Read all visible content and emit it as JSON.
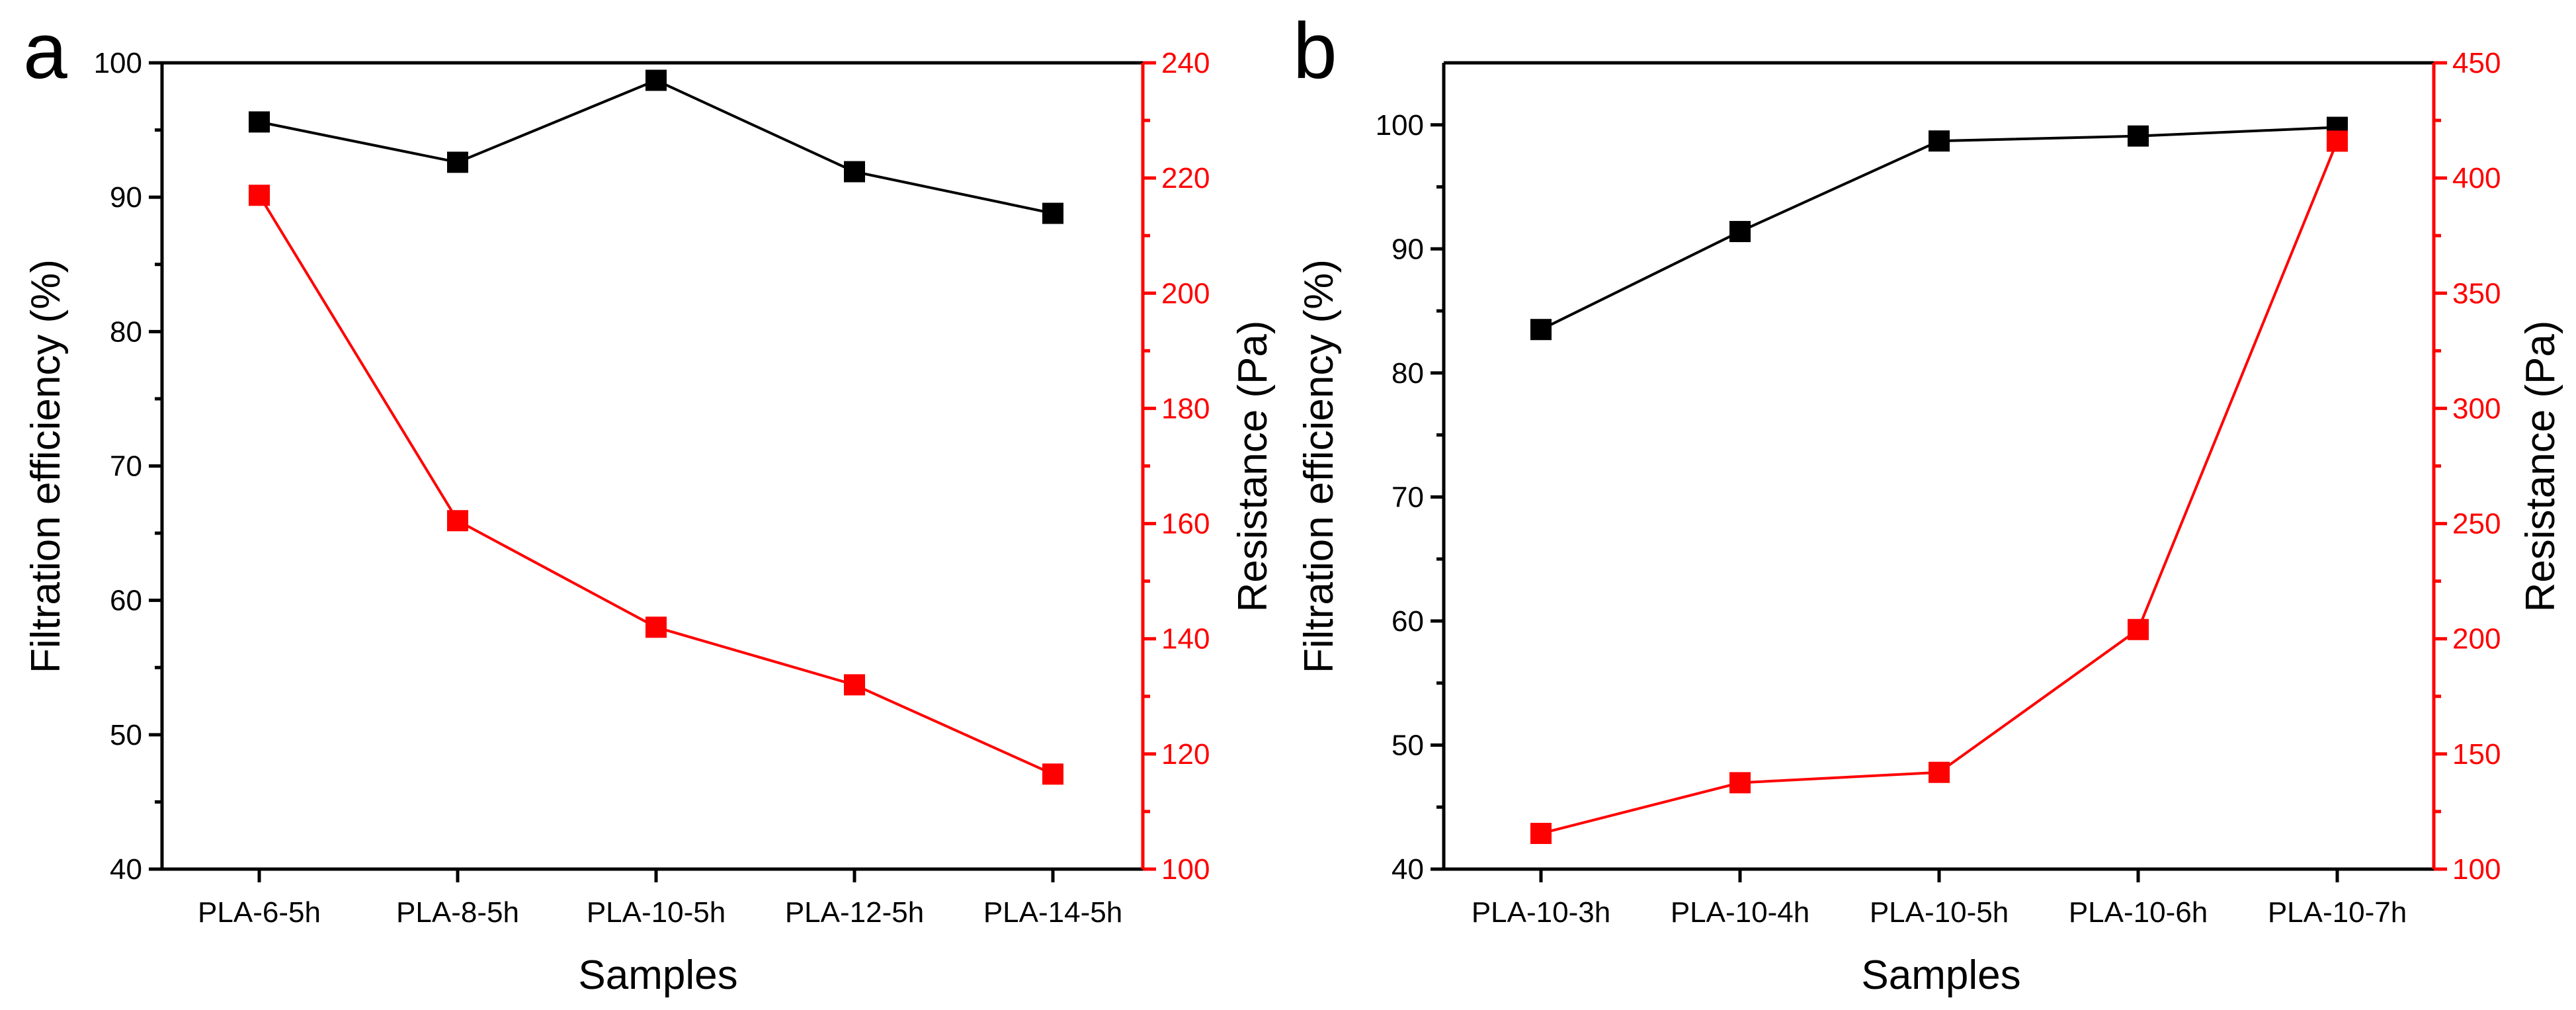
{
  "colors": {
    "efficiency": "#000000",
    "resistance": "#ff0000",
    "axis": "#000000"
  },
  "chart_data": [
    {
      "panel_label": "a",
      "type": "line",
      "dual_axis": true,
      "xlabel": "Samples",
      "ylabel_left": "Filtration efficiency (%)",
      "ylabel_right": "Resistance (Pa)",
      "categories": [
        "PLA-6-5h",
        "PLA-8-5h",
        "PLA-10-5h",
        "PLA-12-5h",
        "PLA-14-5h"
      ],
      "ylim_left": [
        40,
        100
      ],
      "yticks_left": [
        "40",
        "50",
        "60",
        "70",
        "80",
        "90",
        "100"
      ],
      "ylim_right": [
        100,
        240
      ],
      "yticks_right": [
        "100",
        "120",
        "140",
        "160",
        "180",
        "200",
        "220",
        "240"
      ],
      "series": [
        {
          "name": "Filtration efficiency",
          "axis": "left",
          "marker": "square",
          "values": [
            95.6,
            92.6,
            98.7,
            91.9,
            88.8
          ]
        },
        {
          "name": "Resistance",
          "axis": "right",
          "marker": "square",
          "values": [
            217,
            160.5,
            142,
            132,
            116.5
          ]
        }
      ],
      "grid": false,
      "legend": "none"
    },
    {
      "panel_label": "b",
      "type": "line",
      "dual_axis": true,
      "xlabel": "Samples",
      "ylabel_left": "Filtration efficiency (%)",
      "ylabel_right": "Resistance (Pa)",
      "categories": [
        "PLA-10-3h",
        "PLA-10-4h",
        "PLA-10-5h",
        "PLA-10-6h",
        "PLA-10-7h"
      ],
      "ylim_left": [
        40,
        105
      ],
      "yticks_left": [
        "40",
        "50",
        "60",
        "70",
        "80",
        "90",
        "100"
      ],
      "ylim_right": [
        100,
        450
      ],
      "yticks_right": [
        "100",
        "150",
        "200",
        "250",
        "300",
        "350",
        "400",
        "450"
      ],
      "series": [
        {
          "name": "Filtration efficiency",
          "axis": "left",
          "marker": "square",
          "values": [
            83.5,
            91.4,
            98.7,
            99.1,
            99.8
          ]
        },
        {
          "name": "Resistance",
          "axis": "right",
          "marker": "square",
          "values": [
            115.5,
            137.5,
            142,
            204,
            416
          ]
        }
      ],
      "grid": false,
      "legend": "none"
    }
  ]
}
